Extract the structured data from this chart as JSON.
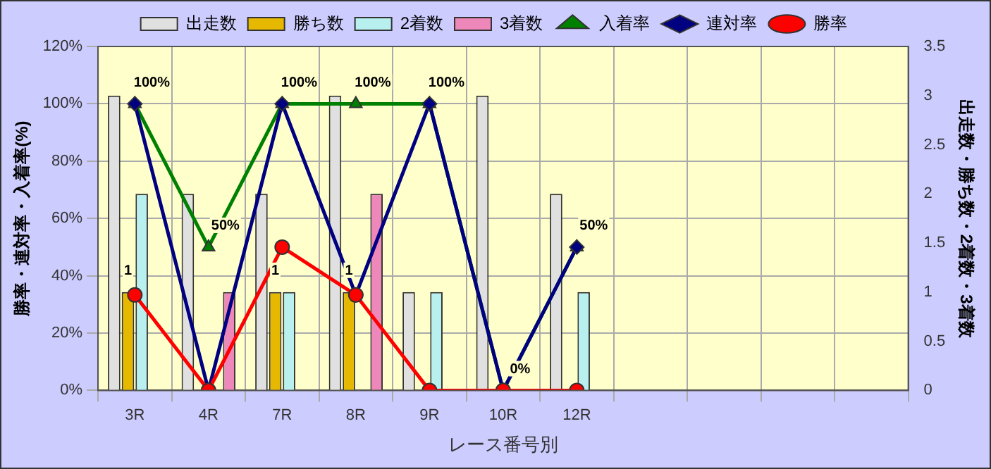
{
  "chart_data": {
    "type": "bar",
    "xlabel": "レース番号別",
    "ylabel": "勝率・連対率・入着率(%)",
    "y2label": "出走数・勝ち数・2着数・3着数",
    "categories": [
      "3R",
      "4R",
      "7R",
      "8R",
      "9R",
      "10R",
      "12R",
      null,
      null,
      null,
      null
    ],
    "series": [
      {
        "name": "出走数",
        "axis": "y2",
        "color": "#e0e0e0",
        "values": [
          3,
          2,
          2,
          3,
          1,
          3,
          2,
          null,
          null,
          null,
          null
        ]
      },
      {
        "name": "勝ち数",
        "axis": "y2",
        "color": "#e6b800",
        "values": [
          1,
          0,
          1,
          1,
          0,
          0,
          0,
          null,
          null,
          null,
          null
        ],
        "value_labels": [
          "1",
          null,
          "1",
          "1",
          null,
          null,
          null,
          null,
          null,
          null,
          null
        ]
      },
      {
        "name": "2着数",
        "axis": "y2",
        "color": "#b8f0f0",
        "values": [
          2,
          0,
          1,
          0,
          1,
          0,
          1,
          null,
          null,
          null,
          null
        ]
      },
      {
        "name": "3着数",
        "axis": "y2",
        "color": "#ee88bb",
        "values": [
          0,
          1,
          0,
          2,
          0,
          0,
          0,
          null,
          null,
          null,
          null
        ]
      },
      {
        "name": "入着率",
        "type": "line",
        "axis": "y",
        "color": "#008000",
        "marker": "triangle",
        "values": [
          100,
          50,
          100,
          100,
          100,
          0,
          50,
          null,
          null,
          null,
          null
        ],
        "value_labels": [
          "100%",
          "50%",
          "100%",
          "100%",
          "100%",
          "0%",
          "50%",
          null,
          null,
          null,
          null
        ]
      },
      {
        "name": "連対率",
        "type": "line",
        "axis": "y",
        "color": "#000080",
        "marker": "diamond",
        "values": [
          100,
          0,
          100,
          33.3,
          100,
          0,
          50,
          null,
          null,
          null,
          null
        ]
      },
      {
        "name": "勝率",
        "type": "line",
        "axis": "y",
        "color": "#ff0000",
        "marker": "circle",
        "values": [
          33.3,
          0,
          50,
          33.3,
          0,
          0,
          0,
          null,
          null,
          null,
          null
        ]
      }
    ],
    "ylim": [
      0,
      120
    ],
    "yticks": [
      {
        "value": 0,
        "label": "0%"
      },
      {
        "value": 20,
        "label": "20%"
      },
      {
        "value": 40,
        "label": "40%"
      },
      {
        "value": 60,
        "label": "60%"
      },
      {
        "value": 80,
        "label": "80%"
      },
      {
        "value": 100,
        "label": "100%"
      },
      {
        "value": 120,
        "label": "120%"
      }
    ],
    "y2lim": [
      0,
      3.5
    ],
    "y2ticks": [
      0,
      0.5,
      1,
      1.5,
      2,
      2.5,
      3,
      3.5
    ],
    "grid": true,
    "legend": "top"
  }
}
